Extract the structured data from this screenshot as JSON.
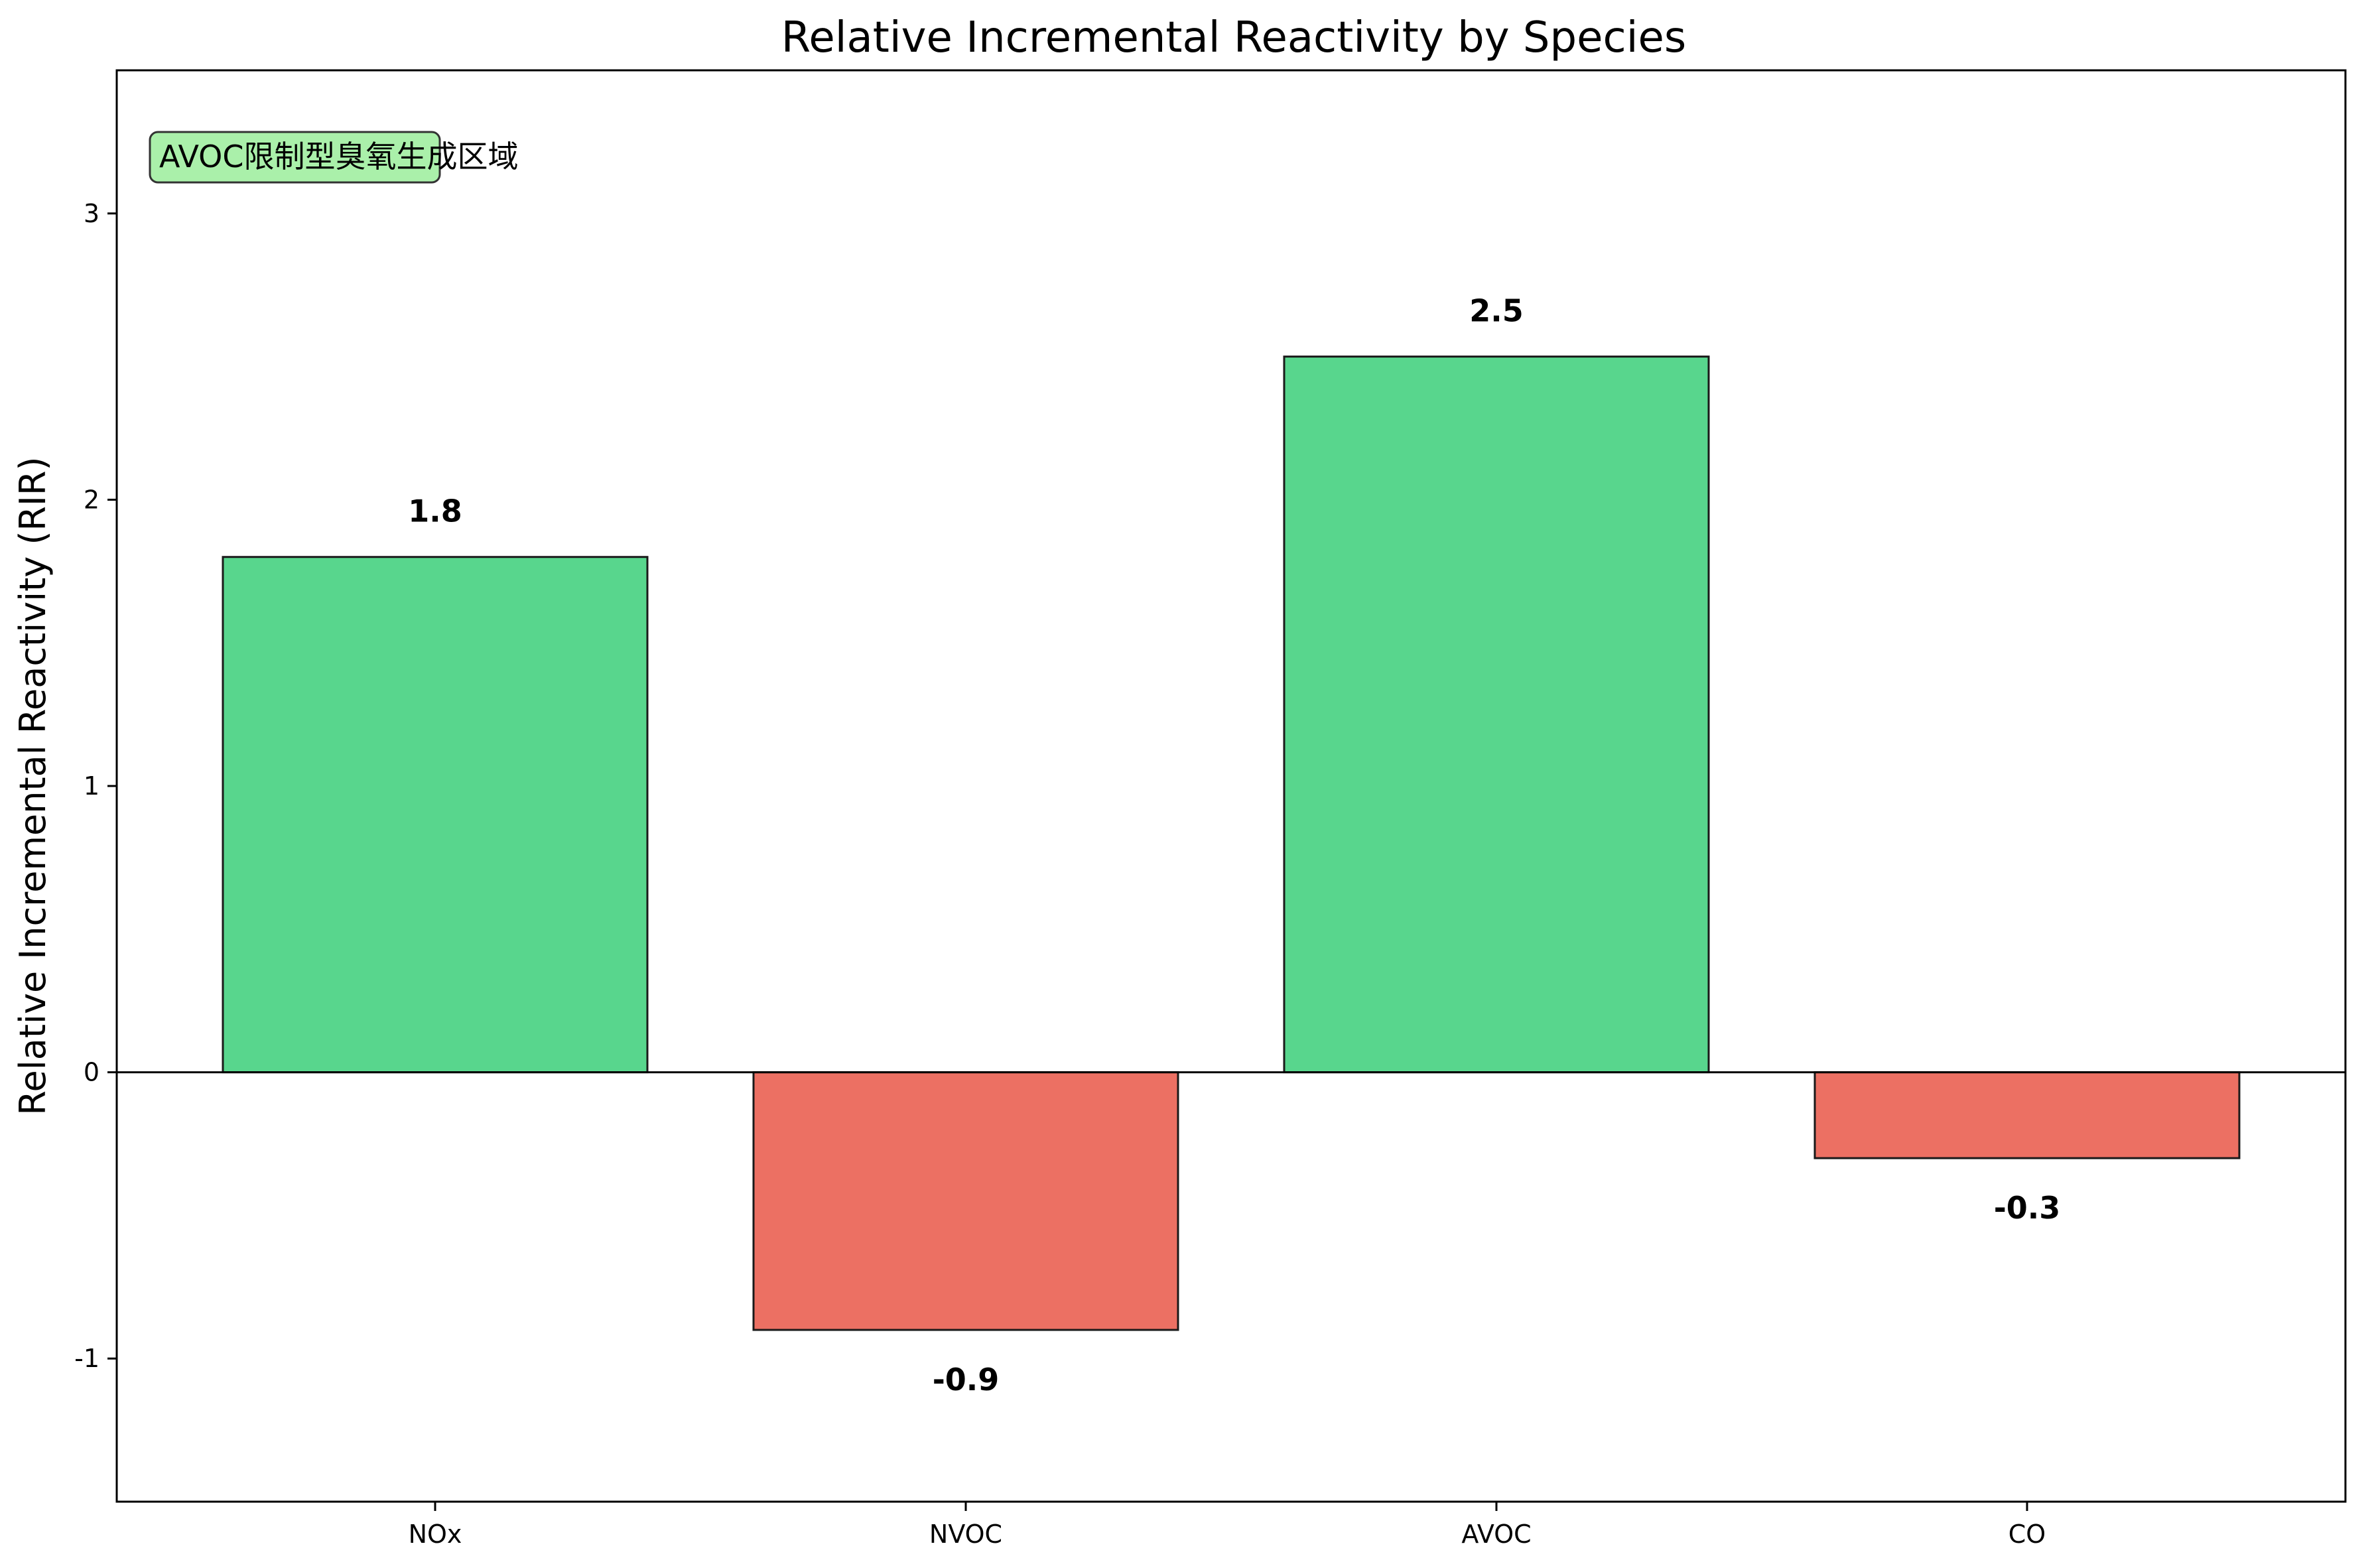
{
  "colors": {
    "positive": "#58d68d",
    "negative": "#ec7063",
    "annotation_bg": "#aaf0aa",
    "edge": "#1a1a1a"
  },
  "chart_data": {
    "type": "bar",
    "title": "Relative Incremental Reactivity by Species",
    "xlabel": "",
    "ylabel": "Relative Incremental Reactivity (RIR)",
    "categories": [
      "NOx",
      "NVOC",
      "AVOC",
      "CO"
    ],
    "values": [
      1.8,
      -0.9,
      2.5,
      -0.3
    ],
    "value_labels": [
      "1.8",
      "-0.9",
      "2.5",
      "-0.3"
    ],
    "ylim": [
      -1.5,
      3.5
    ],
    "yticks": [
      -1,
      0,
      1,
      2,
      3
    ],
    "ytick_labels": [
      "-1",
      "0",
      "1",
      "2",
      "3"
    ],
    "annotation": "AVOC限制型臭氧生成区域",
    "annotation_placement": "top-left",
    "grid": false
  }
}
